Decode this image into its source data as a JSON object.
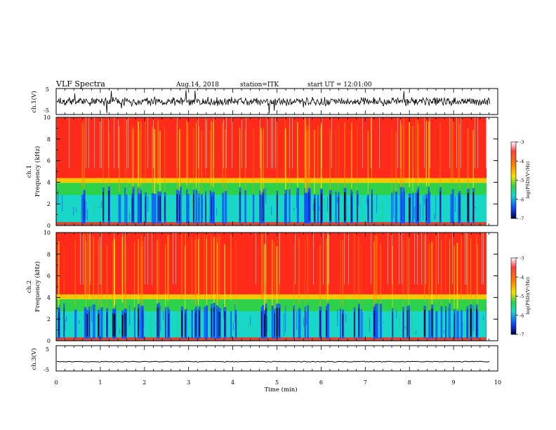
{
  "header": {
    "title": "VLF Spectra",
    "date": "Aug.14, 2018",
    "station": "station=ITK",
    "start_time": "start UT =   12:01:00"
  },
  "chart_data": [
    {
      "type": "line",
      "name": "ch1-waveform",
      "ylabel": "ch.1(V)",
      "ylim": [
        -5,
        5
      ],
      "yticks": [
        "5",
        "-5"
      ],
      "xlim": [
        0,
        10
      ],
      "description_values": {
        "baseline": 0,
        "typical_amplitude": 2,
        "spike_amplitude": 5
      }
    },
    {
      "type": "heatmap",
      "name": "ch1-spectrogram",
      "ylabel_line1": "ch.1",
      "ylabel_line2": "Frequency (kHz)",
      "ylim": [
        0,
        10
      ],
      "yticks": [
        "0",
        "2",
        "4",
        "6",
        "8",
        "10"
      ],
      "xlim": [
        0,
        9.83
      ],
      "colorbar": {
        "label": "log(PSD)(V²/Hz)",
        "range": [
          -7,
          -3
        ],
        "ticks": [
          "-3",
          "-4",
          "-5",
          "-6",
          "-7"
        ]
      },
      "band_boundary_khz": 4.0
    },
    {
      "type": "heatmap",
      "name": "ch2-spectrogram",
      "ylabel_line1": "ch.2",
      "ylabel_line2": "Frequency (kHz)",
      "ylim": [
        0,
        10
      ],
      "yticks": [
        "0",
        "2",
        "4",
        "6",
        "8",
        "10"
      ],
      "xlim": [
        0,
        9.83
      ],
      "colorbar": {
        "label": "log(PSD)(V²/Hz)",
        "range": [
          -7,
          -3
        ],
        "ticks": [
          "-3",
          "-4",
          "-5",
          "-6",
          "-7"
        ]
      },
      "band_boundary_khz": 3.9
    },
    {
      "type": "line",
      "name": "ch3-waveform",
      "ylabel": "ch.3(V)",
      "ylim": [
        -5,
        5
      ],
      "yticks": [
        "5",
        "-5"
      ],
      "xlim": [
        0,
        10
      ],
      "xlabel": "Time (min)",
      "xticks": [
        "0",
        "1",
        "2",
        "3",
        "4",
        "5",
        "6",
        "7",
        "8",
        "9",
        "10"
      ],
      "description_values": {
        "baseline": -1.3
      }
    }
  ],
  "colors": {
    "line": "#000000",
    "red": "#ff2a1a",
    "yellow": "#f5e000",
    "green": "#2ed24a",
    "cyan": "#18d7c7",
    "blue": "#1450ff",
    "navy": "#000a78",
    "black": "#000000"
  }
}
